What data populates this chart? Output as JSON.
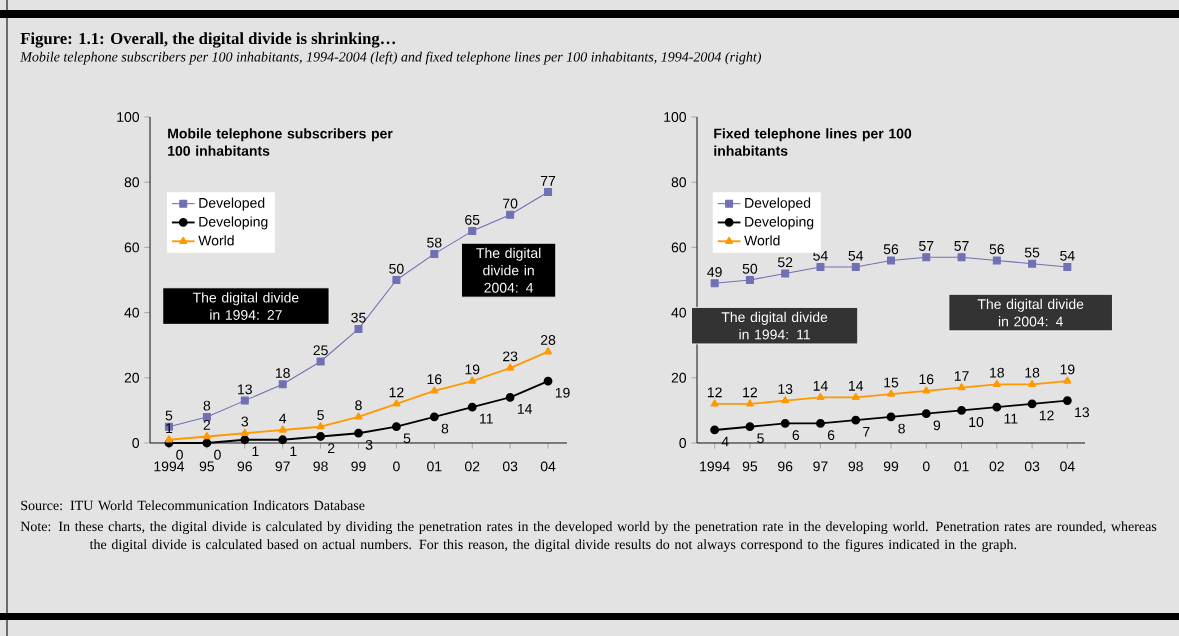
{
  "chart_data": [
    {
      "type": "line",
      "title": "Mobile telephone subscribers per 100 inhabitants",
      "categories": [
        "1994",
        "95",
        "96",
        "97",
        "98",
        "99",
        "0",
        "01",
        "02",
        "03",
        "04"
      ],
      "series": [
        {
          "name": "Developed",
          "color": "#7070b4",
          "marker": "square",
          "values": [
            5,
            8,
            13,
            18,
            25,
            35,
            50,
            58,
            65,
            70,
            77
          ]
        },
        {
          "name": "Developing",
          "color": "#000000",
          "marker": "circle",
          "values": [
            0,
            0,
            1,
            1,
            2,
            3,
            5,
            8,
            11,
            14,
            19
          ]
        },
        {
          "name": "World",
          "color": "#ff9900",
          "marker": "triangle",
          "values": [
            1,
            2,
            3,
            4,
            5,
            8,
            12,
            16,
            19,
            23,
            28
          ]
        }
      ],
      "ylim": [
        0,
        100
      ],
      "yticks": [
        0,
        20,
        40,
        60,
        80,
        100
      ],
      "legend": "top left",
      "data_labels": true,
      "annotations": [
        "Figure: 1.1: Overall, the digital divide is shrinking…",
        "Mobile telephone subscribers per 100 inhabitants, 1994-2004 (left) and fixed telephone lines per 100 inhabitants, 1994-2004 (right)",
        "The digital divide in 1994: 27",
        "The digital divide in 2004: 4"
      ]
    },
    {
      "type": "line",
      "title": "Fixed telephone lines per 100 inhabitants",
      "categories": [
        "1994",
        "95",
        "96",
        "97",
        "98",
        "99",
        "0",
        "01",
        "02",
        "03",
        "04"
      ],
      "series": [
        {
          "name": "Developed",
          "color": "#7070b4",
          "marker": "square",
          "values": [
            49,
            50,
            52,
            54,
            54,
            56,
            57,
            57,
            56,
            55,
            54
          ]
        },
        {
          "name": "Developing",
          "color": "#000000",
          "marker": "circle",
          "values": [
            4,
            5,
            6,
            6,
            7,
            8,
            9,
            10,
            11,
            12,
            13
          ]
        },
        {
          "name": "World",
          "color": "#ff9900",
          "marker": "triangle",
          "values": [
            12,
            12,
            13,
            14,
            14,
            15,
            16,
            17,
            18,
            18,
            19
          ]
        }
      ],
      "ylim": [
        0,
        100
      ],
      "yticks": [
        0,
        20,
        40,
        60,
        80,
        100
      ],
      "legend": "top left",
      "data_labels": true,
      "annotations": [
        "The digital divide in 1994: 11",
        "The digital divide in 2004: 4",
        "Source: ITU World Telecommunication Indicators Database",
        "Note: In these charts, the digital divide is calculated by dividing the penetration rates in the developed world by the penetration rate in the developing world. Penetration rates are rounded, whereas the digital divide is calculated based on actual numbers. For this reason, the digital divide results do not always correspond to the figures indicated in the graph."
      ]
    }
  ]
}
